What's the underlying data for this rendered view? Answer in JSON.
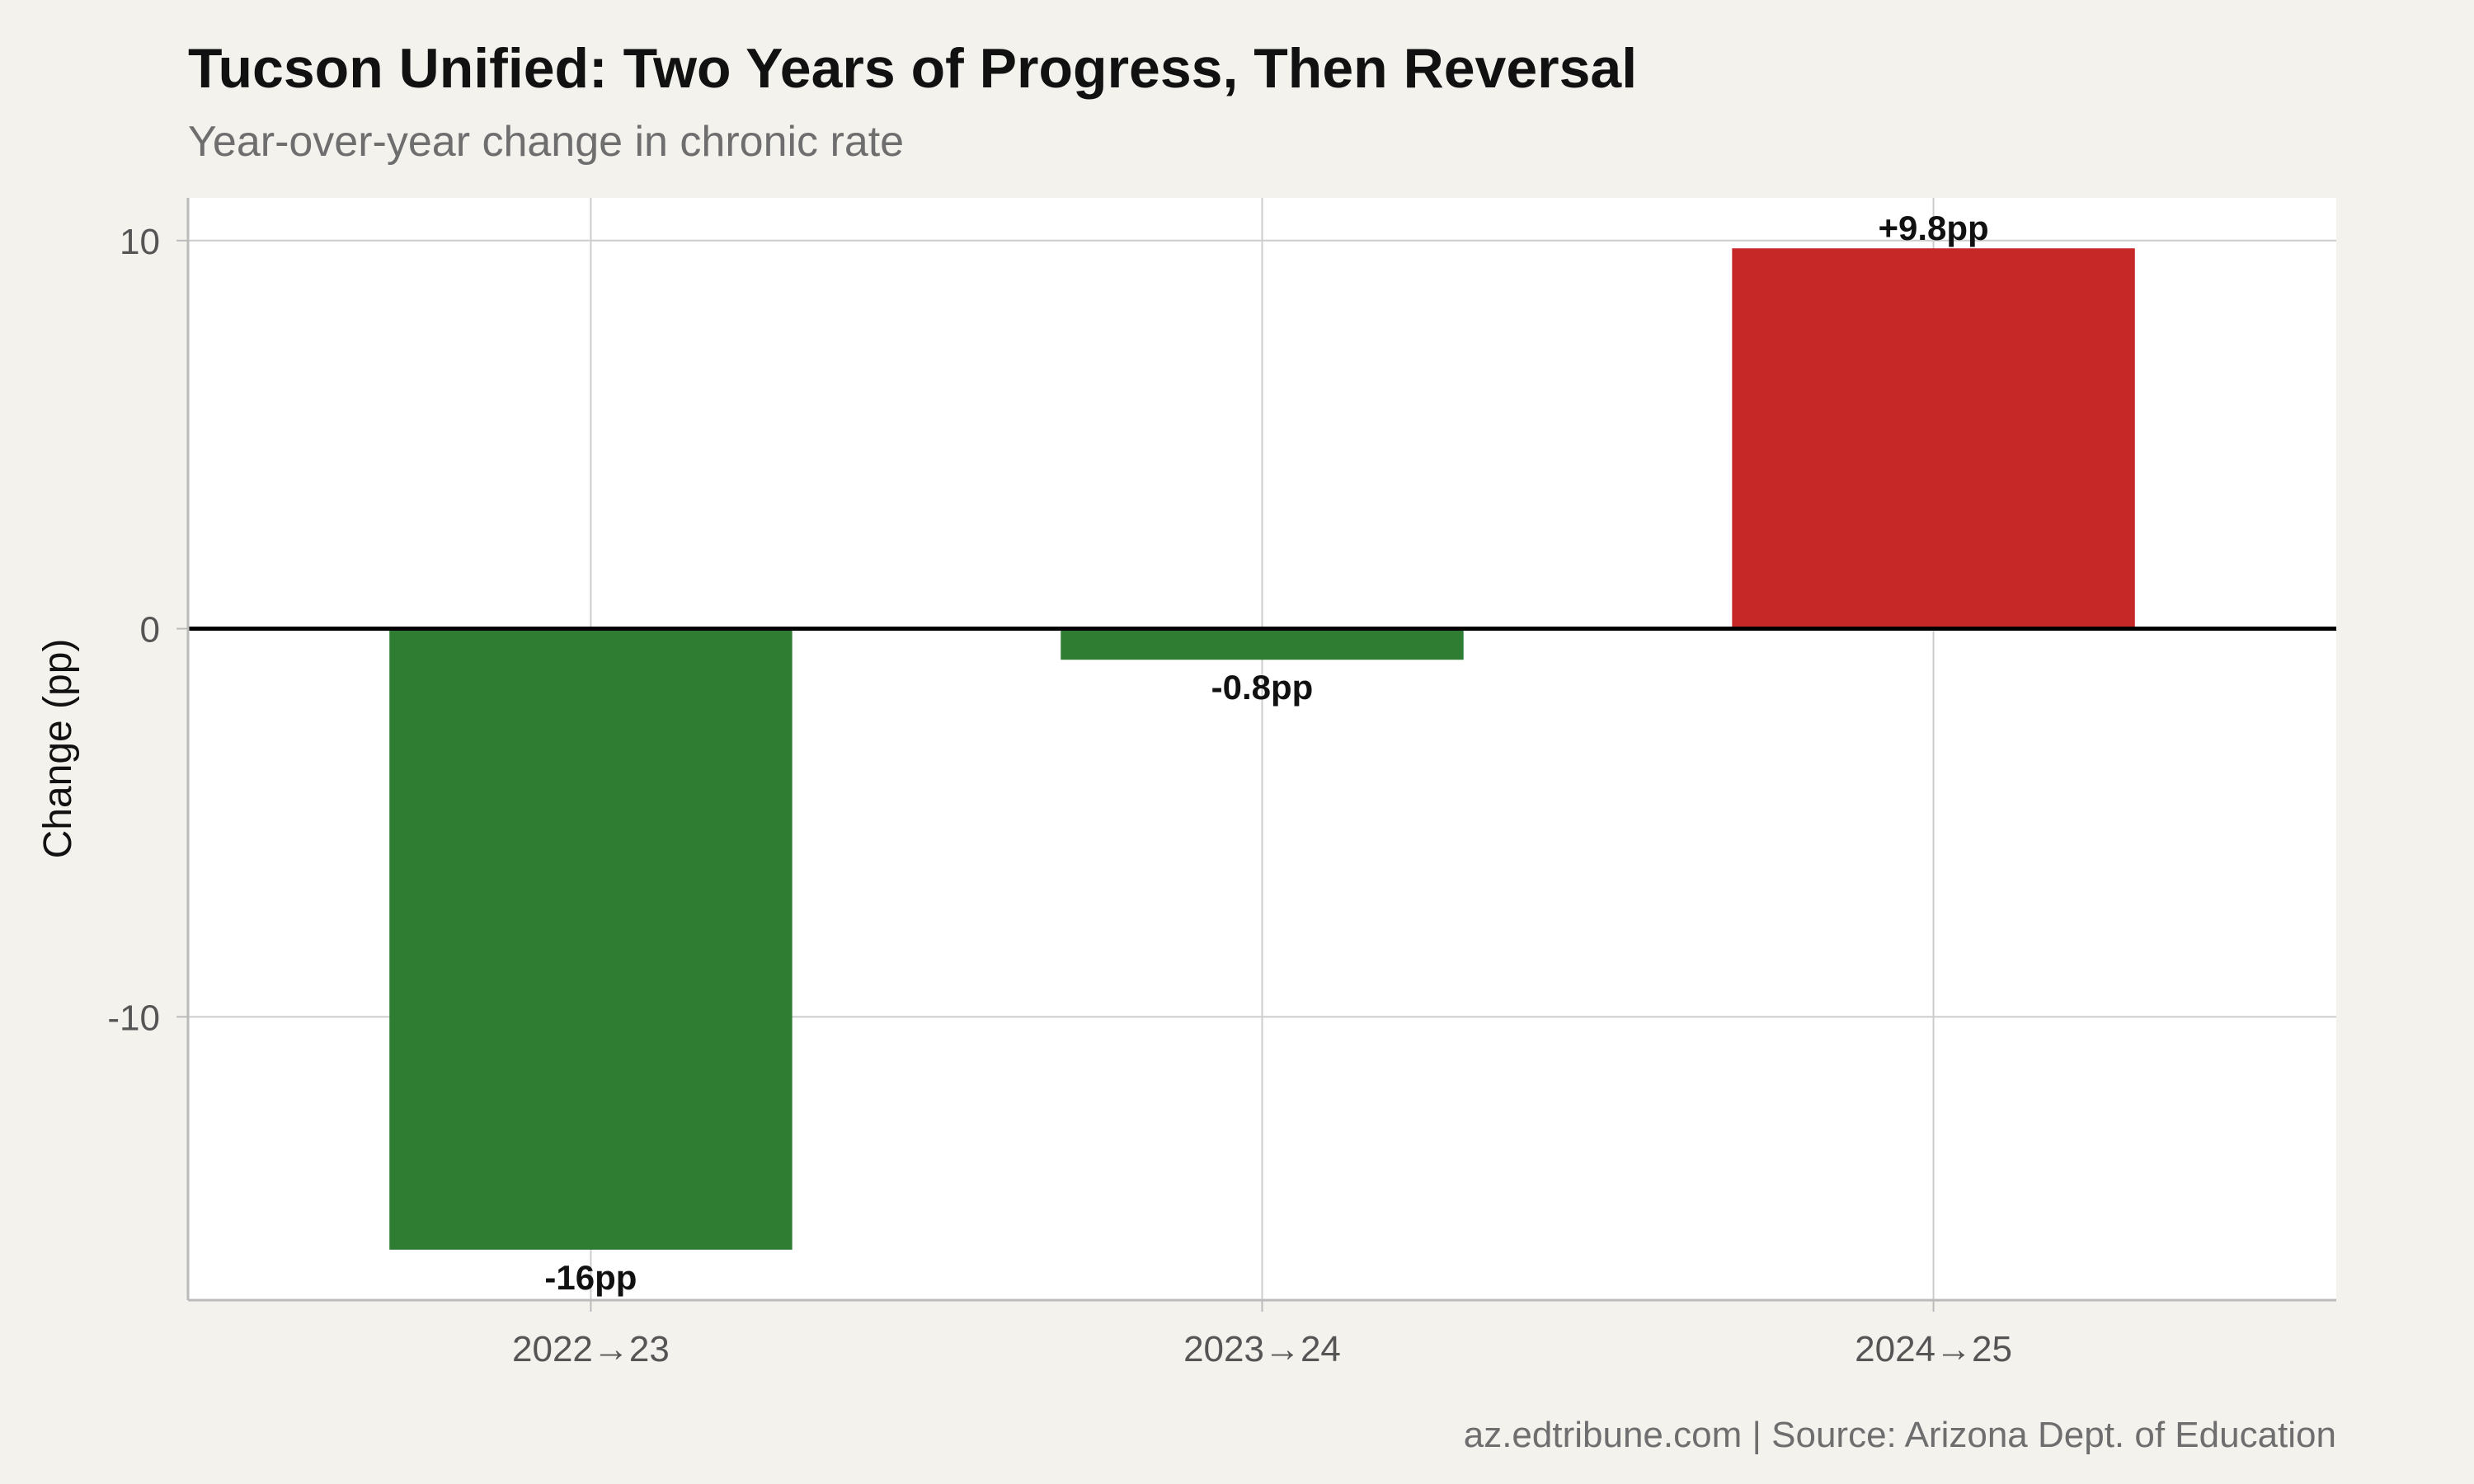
{
  "chart_data": {
    "type": "bar",
    "title": "Tucson Unified: Two Years of Progress, Then Reversal",
    "subtitle": "Year-over-year change in chronic rate",
    "xlabel": "",
    "ylabel": "Change (pp)",
    "categories": [
      "2022→23",
      "2023→24",
      "2024→25"
    ],
    "values": [
      -16,
      -0.8,
      9.8
    ],
    "data_labels": [
      "-16pp",
      "-0.8pp",
      "+9.8pp"
    ],
    "bar_colors": [
      "#2e7d32",
      "#2e7d32",
      "#c62828"
    ],
    "ylim": [
      -17.3,
      11.1
    ],
    "yticks": [
      10,
      0,
      -10
    ],
    "ytick_labels": [
      "10",
      "0",
      "-10"
    ],
    "grid": true,
    "zero_line": true,
    "caption": "az.edtribune.com | Source: Arizona Dept. of Education"
  }
}
